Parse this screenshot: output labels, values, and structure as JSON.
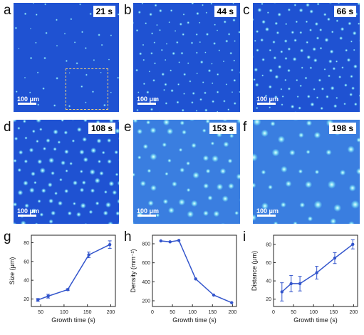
{
  "panels": [
    {
      "letter": "a",
      "time": "21 s",
      "scale": "100 μm",
      "density": 0.35,
      "blob": 0.45,
      "highlight": true
    },
    {
      "letter": "b",
      "time": "44 s",
      "scale": "100 μm",
      "density": 0.8,
      "blob": 0.55,
      "highlight": false
    },
    {
      "letter": "c",
      "time": "66 s",
      "scale": "100 μm",
      "density": 1.0,
      "blob": 0.7,
      "highlight": false
    },
    {
      "letter": "d",
      "time": "108 s",
      "scale": "100 μm",
      "density": 1.0,
      "blob": 1.0,
      "highlight": false
    },
    {
      "letter": "e",
      "time": "153 s",
      "scale": "100 μm",
      "density": 0.75,
      "blob": 1.35,
      "highlight": false
    },
    {
      "letter": "f",
      "time": "198 s",
      "scale": "100 μm",
      "density": 0.55,
      "blob": 1.6,
      "highlight": false
    }
  ],
  "chart_labels": [
    "g",
    "h",
    "i"
  ],
  "chart_data": [
    {
      "type": "line",
      "xlabel": "Growth time (s)",
      "ylabel": "Size (μm)",
      "x": [
        44,
        66,
        108,
        153,
        198
      ],
      "y": [
        19,
        23,
        30,
        67,
        78
      ],
      "err": [
        1.5,
        2,
        1,
        3,
        4
      ],
      "xlim": [
        30,
        210
      ],
      "ylim": [
        12,
        88
      ],
      "xticks": [
        50,
        100,
        150,
        200
      ],
      "yticks": [
        20,
        40,
        60,
        80
      ],
      "color": "#3355cc"
    },
    {
      "type": "line",
      "xlabel": "Growth time (s)",
      "ylabel": "Density (mm⁻²)",
      "x": [
        21,
        44,
        66,
        108,
        153,
        198
      ],
      "y": [
        830,
        820,
        835,
        430,
        260,
        180
      ],
      "err": [
        0,
        0,
        0,
        0,
        0,
        0
      ],
      "xlim": [
        0,
        210
      ],
      "ylim": [
        140,
        890
      ],
      "xticks": [
        0,
        50,
        100,
        150,
        200
      ],
      "yticks": [
        200,
        400,
        600,
        800
      ],
      "color": "#3355cc"
    },
    {
      "type": "line",
      "xlabel": "Growth time (s)",
      "ylabel": "Distance (μm)",
      "x": [
        21,
        44,
        66,
        108,
        153,
        198
      ],
      "y": [
        28,
        37,
        37,
        49,
        65,
        80
      ],
      "err": [
        10,
        9,
        8,
        7,
        6,
        5
      ],
      "xlim": [
        0,
        210
      ],
      "ylim": [
        12,
        90
      ],
      "xticks": [
        0,
        50,
        100,
        150,
        200
      ],
      "yticks": [
        20,
        40,
        60,
        80
      ],
      "color": "#3355cc"
    }
  ]
}
